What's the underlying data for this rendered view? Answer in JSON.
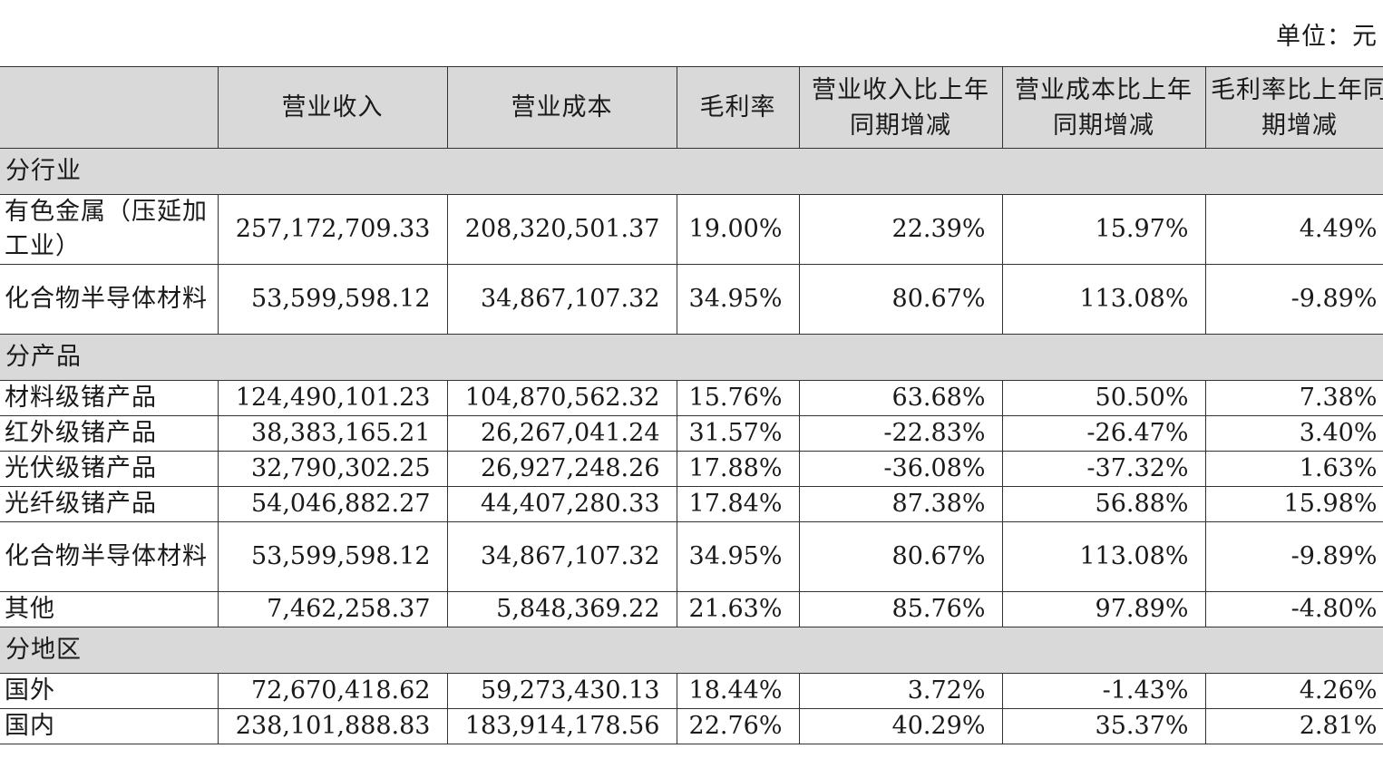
{
  "unit_label": "单位：元",
  "headers": [
    "",
    "营业收入",
    "营业成本",
    "毛利率",
    "营业收入比上年同期增减",
    "营业成本比上年同期增减",
    "毛利率比上年同期增减"
  ],
  "sections": [
    {
      "title": "分行业",
      "rows": [
        {
          "name": "有色金属（压延加工业）",
          "cells": [
            "257,172,709.33",
            "208,320,501.37",
            "19.00%",
            "22.39%",
            "15.97%",
            "4.49%"
          ]
        },
        {
          "name": "化合物半导体材料",
          "cells": [
            "53,599,598.12",
            "34,867,107.32",
            "34.95%",
            "80.67%",
            "113.08%",
            "-9.89%"
          ]
        }
      ]
    },
    {
      "title": "分产品",
      "rows": [
        {
          "name": "材料级锗产品",
          "cells": [
            "124,490,101.23",
            "104,870,562.32",
            "15.76%",
            "63.68%",
            "50.50%",
            "7.38%"
          ]
        },
        {
          "name": "红外级锗产品",
          "cells": [
            "38,383,165.21",
            "26,267,041.24",
            "31.57%",
            "-22.83%",
            "-26.47%",
            "3.40%"
          ]
        },
        {
          "name": "光伏级锗产品",
          "cells": [
            "32,790,302.25",
            "26,927,248.26",
            "17.88%",
            "-36.08%",
            "-37.32%",
            "1.63%"
          ]
        },
        {
          "name": "光纤级锗产品",
          "cells": [
            "54,046,882.27",
            "44,407,280.33",
            "17.84%",
            "87.38%",
            "56.88%",
            "15.98%"
          ]
        },
        {
          "name": "化合物半导体材料",
          "cells": [
            "53,599,598.12",
            "34,867,107.32",
            "34.95%",
            "80.67%",
            "113.08%",
            "-9.89%"
          ]
        },
        {
          "name": "其他",
          "cells": [
            "7,462,258.37",
            "5,848,369.22",
            "21.63%",
            "85.76%",
            "97.89%",
            "-4.80%"
          ]
        }
      ]
    },
    {
      "title": "分地区",
      "rows": [
        {
          "name": "国外",
          "cells": [
            "72,670,418.62",
            "59,273,430.13",
            "18.44%",
            "3.72%",
            "-1.43%",
            "4.26%"
          ]
        },
        {
          "name": "国内",
          "cells": [
            "238,101,888.83",
            "183,914,178.56",
            "22.76%",
            "40.29%",
            "35.37%",
            "2.81%"
          ]
        }
      ]
    }
  ]
}
